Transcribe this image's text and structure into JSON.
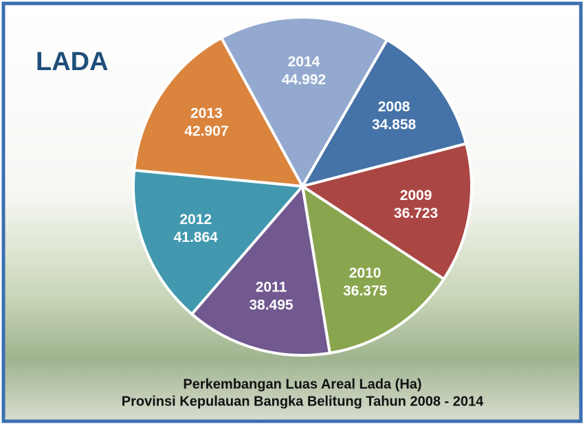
{
  "chart_data": {
    "type": "pie",
    "title": "LADA",
    "categories": [
      "2008",
      "2009",
      "2010",
      "2011",
      "2012",
      "2013",
      "2014"
    ],
    "values": [
      34858,
      36723,
      36375,
      38495,
      41864,
      42907,
      44992
    ],
    "value_labels": [
      "34.858",
      "36.723",
      "36.375",
      "38.495",
      "41.864",
      "42.907",
      "44.992"
    ],
    "colors": [
      "#4572a7",
      "#aa4643",
      "#89a54e",
      "#71588f",
      "#4198af",
      "#db843d",
      "#93a9cf"
    ],
    "caption": [
      "Perkembangan Luas Areal Lada (Ha)",
      "Provinsi Kepulauan Bangka Belitung Tahun 2008 - 2014"
    ]
  }
}
